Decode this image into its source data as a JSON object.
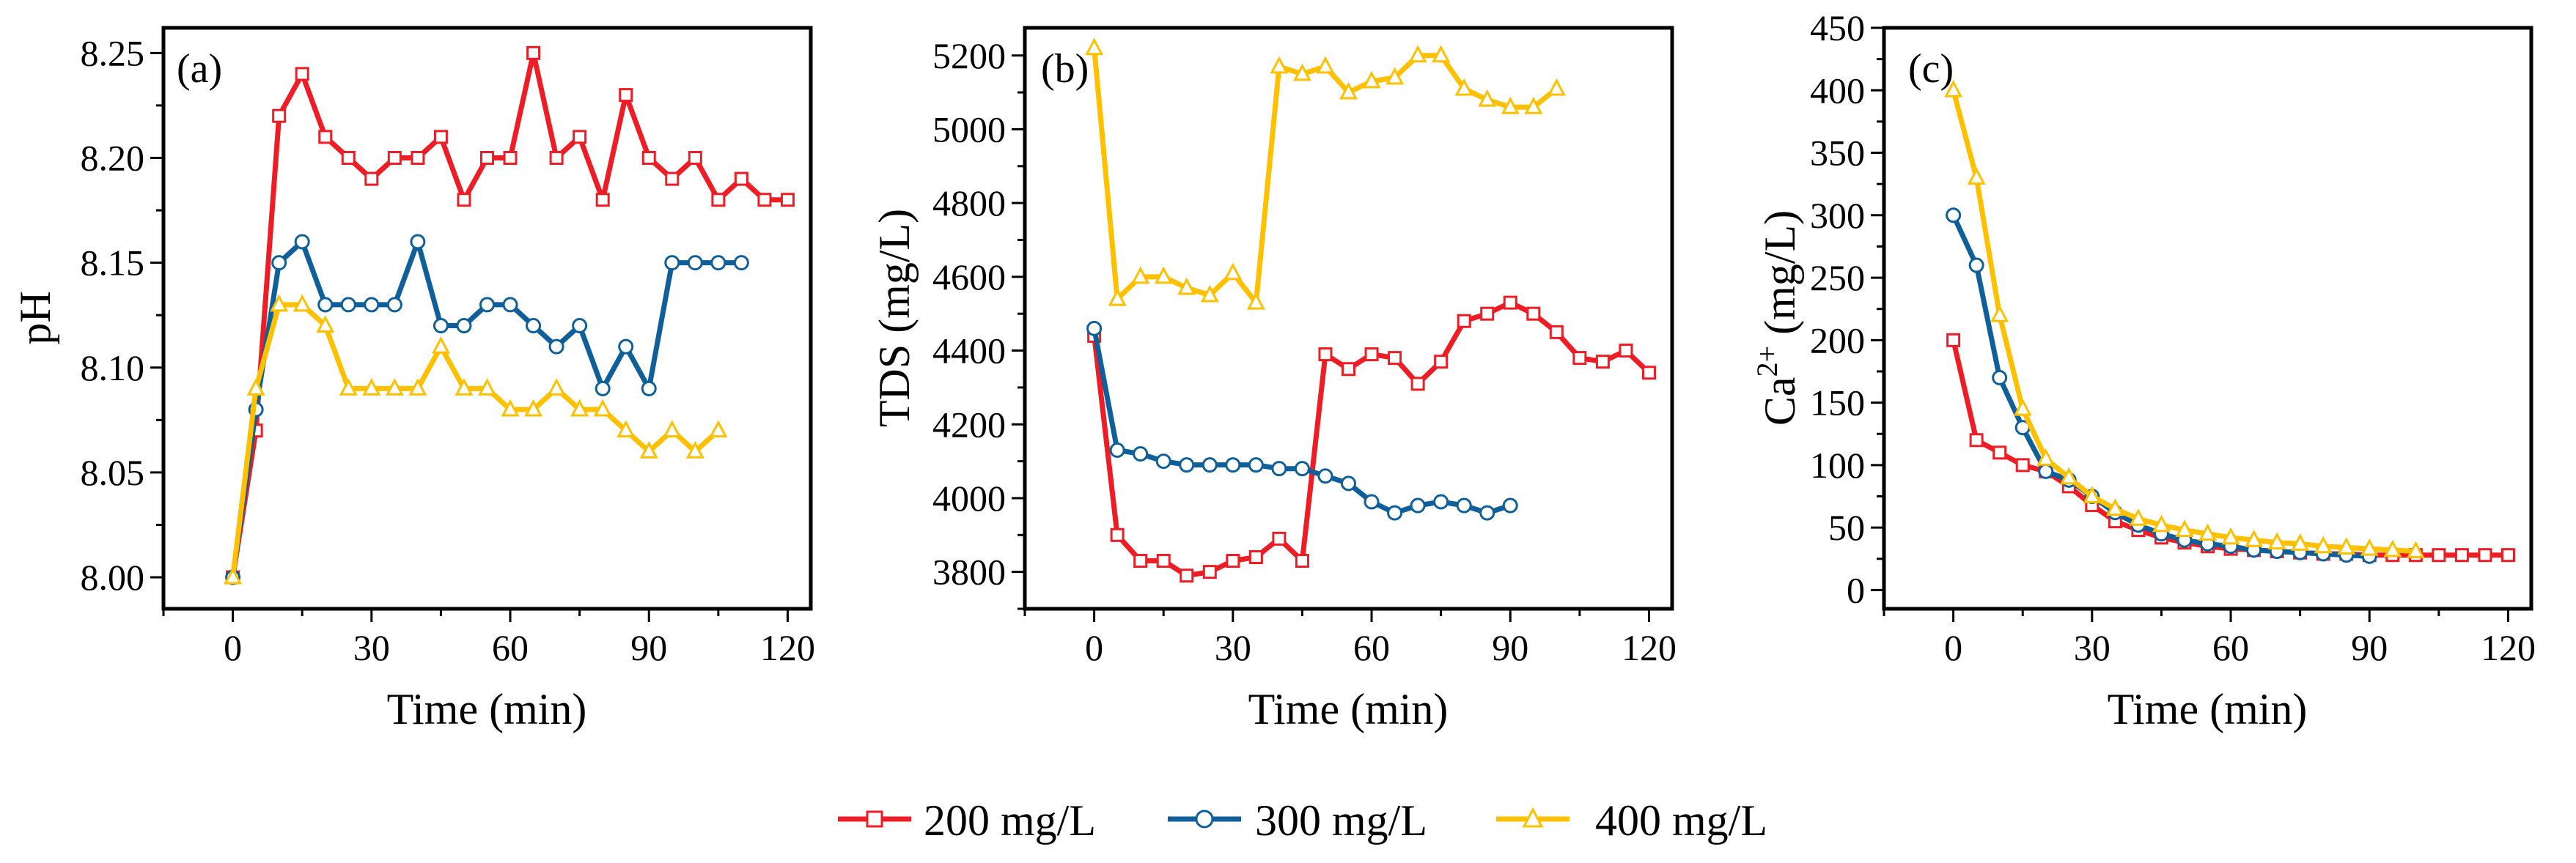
{
  "colors": {
    "series_200": "#ee1c25",
    "series_300": "#0f5f9a",
    "series_400": "#ffc000",
    "axis": "#000000"
  },
  "legend": {
    "items": [
      {
        "label": "200 mg/L",
        "marker": "square",
        "color": "#ee1c25"
      },
      {
        "label": "300 mg/L",
        "marker": "circle",
        "color": "#0f5f9a"
      },
      {
        "label": "400 mg/L",
        "marker": "triangle",
        "color": "#ffc000"
      }
    ]
  },
  "chart_data": [
    {
      "type": "line",
      "panel_label": "(a)",
      "xlabel": "Time (min)",
      "ylabel": "pH",
      "xlim": [
        -15,
        125
      ],
      "ylim": [
        7.985,
        8.262
      ],
      "xticks": [
        0,
        30,
        60,
        90,
        120
      ],
      "yticks": [
        8.0,
        8.05,
        8.1,
        8.15,
        8.2,
        8.25
      ],
      "ytick_labels": [
        "8.00",
        "8.05",
        "8.10",
        "8.15",
        "8.20",
        "8.25"
      ],
      "series": [
        {
          "name": "200 mg/L",
          "marker": "square",
          "color": "#ee1c25",
          "x": [
            0,
            5,
            10,
            15,
            20,
            25,
            30,
            35,
            40,
            45,
            50,
            55,
            60,
            65,
            70,
            75,
            80,
            85,
            90,
            95,
            100,
            105,
            110,
            115,
            120
          ],
          "y": [
            8.0,
            8.07,
            8.22,
            8.24,
            8.21,
            8.2,
            8.19,
            8.2,
            8.2,
            8.21,
            8.18,
            8.2,
            8.2,
            8.25,
            8.2,
            8.21,
            8.18,
            8.23,
            8.2,
            8.19,
            8.2,
            8.18,
            8.19,
            8.18,
            8.18
          ]
        },
        {
          "name": "300 mg/L",
          "marker": "circle",
          "color": "#0f5f9a",
          "x": [
            0,
            5,
            10,
            15,
            20,
            25,
            30,
            35,
            40,
            45,
            50,
            55,
            60,
            65,
            70,
            75,
            80,
            85,
            90,
            95,
            100,
            105,
            110
          ],
          "y": [
            8.0,
            8.08,
            8.15,
            8.16,
            8.13,
            8.13,
            8.13,
            8.13,
            8.16,
            8.12,
            8.12,
            8.13,
            8.13,
            8.12,
            8.11,
            8.12,
            8.09,
            8.11,
            8.09,
            8.15,
            8.15,
            8.15,
            8.15
          ]
        },
        {
          "name": "400 mg/L",
          "marker": "triangle",
          "color": "#ffc000",
          "x": [
            0,
            5,
            10,
            15,
            20,
            25,
            30,
            35,
            40,
            45,
            50,
            55,
            60,
            65,
            70,
            75,
            80,
            85,
            90,
            95,
            100,
            105
          ],
          "y": [
            8.0,
            8.09,
            8.13,
            8.13,
            8.12,
            8.09,
            8.09,
            8.09,
            8.09,
            8.11,
            8.09,
            8.09,
            8.08,
            8.08,
            8.09,
            8.08,
            8.08,
            8.07,
            8.06,
            8.07,
            8.06,
            8.07
          ]
        }
      ]
    },
    {
      "type": "line",
      "panel_label": "(b)",
      "xlabel": "Time (min)",
      "ylabel": "TDS (mg/L)",
      "xlim": [
        -15,
        125
      ],
      "ylim": [
        3700,
        5275
      ],
      "xticks": [
        0,
        30,
        60,
        90,
        120
      ],
      "yticks": [
        3800,
        4000,
        4200,
        4400,
        4600,
        4800,
        5000,
        5200
      ],
      "ytick_labels": [
        "3800",
        "4000",
        "4200",
        "4400",
        "4600",
        "4800",
        "5000",
        "5200"
      ],
      "series": [
        {
          "name": "200 mg/L",
          "marker": "square",
          "color": "#ee1c25",
          "x": [
            0,
            5,
            10,
            15,
            20,
            25,
            30,
            35,
            40,
            45,
            50,
            55,
            60,
            65,
            70,
            75,
            80,
            85,
            90,
            95,
            100,
            105,
            110,
            115,
            120
          ],
          "y": [
            4440,
            3900,
            3830,
            3830,
            3790,
            3800,
            3830,
            3840,
            3890,
            3830,
            4390,
            4350,
            4390,
            4380,
            4310,
            4370,
            4480,
            4500,
            4530,
            4500,
            4450,
            4380,
            4370,
            4400,
            4340
          ]
        },
        {
          "name": "300 mg/L",
          "marker": "circle",
          "color": "#0f5f9a",
          "x": [
            0,
            5,
            10,
            15,
            20,
            25,
            30,
            35,
            40,
            45,
            50,
            55,
            60,
            65,
            70,
            75,
            80,
            85,
            90
          ],
          "y": [
            4460,
            4130,
            4120,
            4100,
            4090,
            4090,
            4090,
            4090,
            4080,
            4080,
            4060,
            4040,
            3990,
            3960,
            3980,
            3990,
            3980,
            3960,
            3980
          ]
        },
        {
          "name": "400 mg/L",
          "marker": "triangle",
          "color": "#ffc000",
          "x": [
            0,
            5,
            10,
            15,
            20,
            25,
            30,
            35,
            40,
            45,
            50,
            55,
            60,
            65,
            70,
            75,
            80,
            85,
            90,
            95,
            100
          ],
          "y": [
            5220,
            4540,
            4600,
            4600,
            4570,
            4550,
            4610,
            4530,
            5170,
            5150,
            5170,
            5100,
            5130,
            5140,
            5200,
            5200,
            5110,
            5080,
            5060,
            5060,
            5110
          ]
        }
      ]
    },
    {
      "type": "line",
      "panel_label": "(c)",
      "xlabel": "Time (min)",
      "ylabel": "Ca2+ (mg/L)",
      "ylabel_base": "Ca",
      "ylabel_sup": "2+",
      "ylabel_tail": " (mg/L)",
      "xlim": [
        -15,
        125
      ],
      "ylim": [
        -15,
        450
      ],
      "xticks": [
        0,
        30,
        60,
        90,
        120
      ],
      "yticks": [
        0,
        50,
        100,
        150,
        200,
        250,
        300,
        350,
        400,
        450
      ],
      "ytick_labels": [
        "0",
        "50",
        "100",
        "150",
        "200",
        "250",
        "300",
        "350",
        "400",
        "450"
      ],
      "series": [
        {
          "name": "200 mg/L",
          "marker": "square",
          "color": "#ee1c25",
          "x": [
            0,
            5,
            10,
            15,
            20,
            25,
            30,
            35,
            40,
            45,
            50,
            55,
            60,
            65,
            70,
            75,
            80,
            85,
            90,
            95,
            100,
            105,
            110,
            115,
            120
          ],
          "y": [
            200,
            120,
            110,
            100,
            95,
            83,
            68,
            55,
            48,
            42,
            38,
            35,
            33,
            32,
            31,
            30,
            29,
            29,
            28,
            28,
            28,
            28,
            28,
            28,
            28
          ]
        },
        {
          "name": "300 mg/L",
          "marker": "circle",
          "color": "#0f5f9a",
          "x": [
            0,
            5,
            10,
            15,
            20,
            25,
            30,
            35,
            40,
            45,
            50,
            55,
            60,
            65,
            70,
            75,
            80,
            85,
            90
          ],
          "y": [
            300,
            260,
            170,
            130,
            95,
            88,
            75,
            62,
            52,
            45,
            40,
            37,
            35,
            32,
            31,
            30,
            29,
            28,
            27
          ]
        },
        {
          "name": "400 mg/L",
          "marker": "triangle",
          "color": "#ffc000",
          "x": [
            0,
            5,
            10,
            15,
            20,
            25,
            30,
            35,
            40,
            45,
            50,
            55,
            60,
            65,
            70,
            75,
            80,
            85,
            90,
            95,
            100
          ],
          "y": [
            400,
            330,
            220,
            145,
            105,
            90,
            75,
            65,
            57,
            52,
            48,
            45,
            42,
            40,
            38,
            37,
            35,
            34,
            33,
            32,
            31
          ]
        }
      ]
    }
  ]
}
